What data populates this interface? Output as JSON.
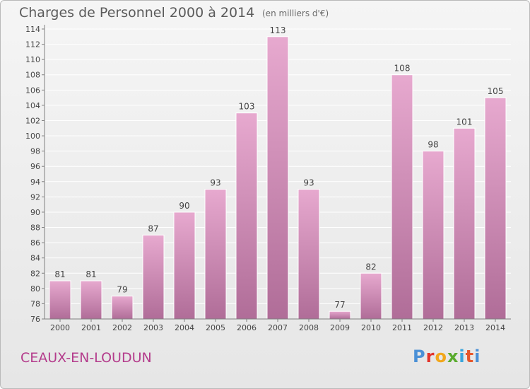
{
  "title": "Charges de Personnel 2000 à 2014",
  "subtitle": "(en milliers d'€)",
  "commune": "CEAUX-EN-LOUDUN",
  "logo": {
    "p": "P",
    "r": "r",
    "o": "o",
    "x": "x",
    "i1": "i",
    "t": "t",
    "i2": "i"
  },
  "colors": {
    "bar_top": "#e7a9cf",
    "bar_bottom": "#b06d98",
    "axis": "#808080",
    "grid": "#ffffff",
    "accent": "#b43c8c"
  },
  "chart_data": {
    "type": "bar",
    "title": "Charges de Personnel 2000 à 2014",
    "ylabel": "en milliers d'€",
    "xlabel": "",
    "categories": [
      "2000",
      "2001",
      "2002",
      "2003",
      "2004",
      "2005",
      "2006",
      "2007",
      "2008",
      "2009",
      "2010",
      "2011",
      "2012",
      "2013",
      "2014"
    ],
    "values": [
      81,
      81,
      79,
      87,
      90,
      93,
      103,
      113,
      93,
      77,
      82,
      108,
      98,
      101,
      105
    ],
    "ylim": [
      76,
      114
    ],
    "yticks": [
      76,
      78,
      80,
      82,
      84,
      86,
      88,
      90,
      92,
      94,
      96,
      98,
      100,
      102,
      104,
      106,
      108,
      110,
      112,
      114
    ],
    "grid": true
  }
}
